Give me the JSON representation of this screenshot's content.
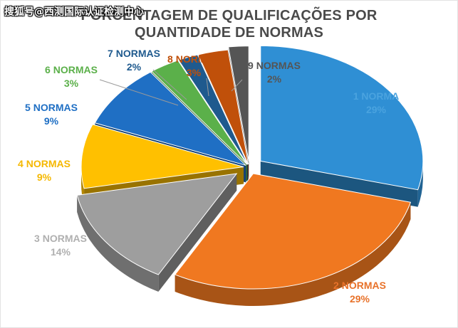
{
  "watermark": "搜狐号@西测国际认证检测中心",
  "chart_data": {
    "type": "pie",
    "title_line1": "PORCENTAGEM DE QUALIFICAÇÕES POR",
    "title_line2": "QUANTIDADE DE NORMAS",
    "slices": [
      {
        "label": "1 NORMA",
        "value": 29,
        "pct_text": "29%",
        "color": "#2f8fd4"
      },
      {
        "label": "2 NORMAS",
        "value": 29,
        "pct_text": "29%",
        "color": "#f07820"
      },
      {
        "label": "3 NORMAS",
        "value": 14,
        "pct_text": "14%",
        "color": "#9e9e9e"
      },
      {
        "label": "4 NORMAS",
        "value": 9,
        "pct_text": "9%",
        "color": "#ffc000"
      },
      {
        "label": "5 NORMAS",
        "value": 9,
        "pct_text": "9%",
        "color": "#1f6fc4"
      },
      {
        "label": "6 NORMAS",
        "value": 3,
        "pct_text": "3%",
        "color": "#5bb04a"
      },
      {
        "label": "7 NORMAS",
        "value": 2,
        "pct_text": "2%",
        "color": "#1f5a8e"
      },
      {
        "label": "8 NORMAS",
        "value": 3,
        "pct_text": "3%",
        "color": "#c0500a"
      },
      {
        "label": "9 NORMAS",
        "value": 2,
        "pct_text": "2%",
        "color": "#555555"
      }
    ],
    "label_colors": [
      "#4aa3df",
      "#e8722a",
      "#b0b0b0",
      "#f5b800",
      "#1f6fc4",
      "#5bb04a",
      "#1f5a8e",
      "#c0500a",
      "#555555"
    ]
  }
}
